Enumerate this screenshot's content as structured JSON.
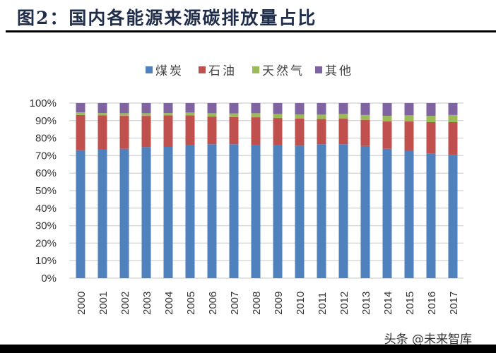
{
  "title": "图2：国内各能源来源碳排放量占比",
  "watermark": "头条 @未来智库",
  "chart_data": {
    "type": "bar",
    "stacked": true,
    "title": "",
    "xlabel": "",
    "ylabel": "",
    "ylim": [
      0,
      100
    ],
    "y_unit": "%",
    "y_ticks": [
      "0%",
      "10%",
      "20%",
      "30%",
      "40%",
      "50%",
      "60%",
      "70%",
      "80%",
      "90%",
      "100%"
    ],
    "grid": true,
    "legend_position": "top",
    "categories": [
      "2000",
      "2001",
      "2002",
      "2003",
      "2004",
      "2005",
      "2006",
      "2007",
      "2008",
      "2009",
      "2010",
      "2011",
      "2012",
      "2013",
      "2014",
      "2015",
      "2016",
      "2017"
    ],
    "series": [
      {
        "name": "煤炭",
        "color": "#4f81bd",
        "values": [
          73.1,
          73.6,
          73.9,
          74.9,
          75.0,
          76.2,
          76.5,
          76.5,
          76.2,
          76.2,
          75.7,
          76.5,
          76.5,
          75.5,
          73.9,
          72.6,
          71.1,
          70.5
        ]
      },
      {
        "name": "石油",
        "color": "#c0504d",
        "values": [
          20.1,
          19.4,
          18.8,
          17.8,
          18.0,
          16.8,
          15.8,
          15.5,
          15.7,
          15.3,
          15.5,
          14.4,
          14.6,
          14.8,
          15.6,
          16.9,
          18.0,
          18.6
        ]
      },
      {
        "name": "天然气",
        "color": "#9bbb59",
        "values": [
          1.5,
          1.3,
          1.5,
          1.5,
          1.3,
          1.6,
          1.9,
          2.1,
          2.3,
          2.3,
          2.3,
          2.5,
          2.7,
          2.9,
          3.2,
          3.5,
          3.6,
          4.1
        ]
      },
      {
        "name": "其他",
        "color": "#8064a2",
        "values": [
          5.3,
          5.7,
          5.8,
          5.8,
          5.7,
          5.4,
          5.8,
          5.9,
          5.8,
          6.2,
          6.5,
          6.6,
          6.2,
          6.8,
          7.3,
          7.0,
          7.3,
          6.8
        ]
      }
    ]
  }
}
